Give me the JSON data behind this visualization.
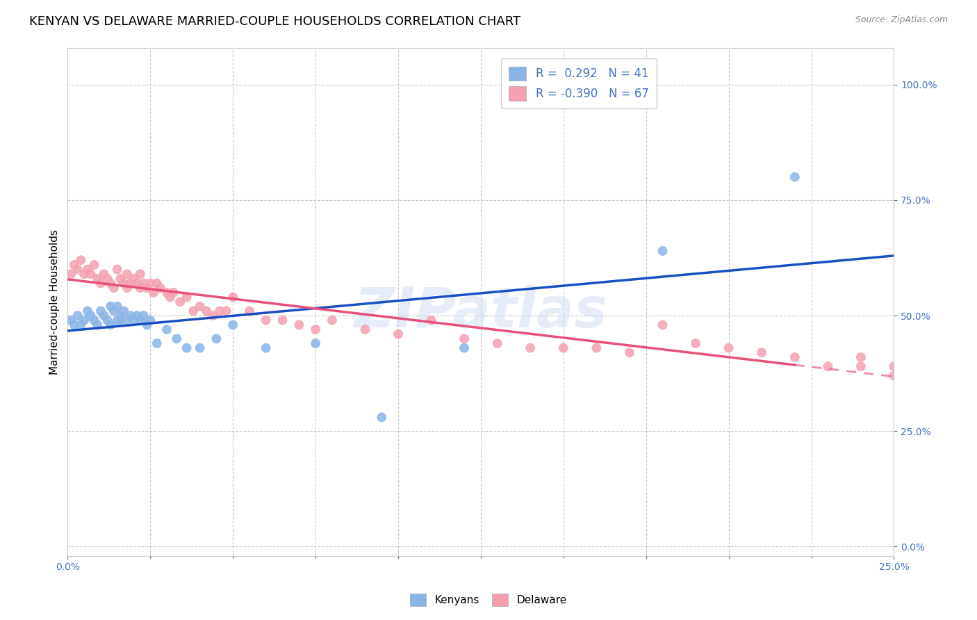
{
  "title": "KENYAN VS DELAWARE MARRIED-COUPLE HOUSEHOLDS CORRELATION CHART",
  "source": "Source: ZipAtlas.com",
  "ylabel": "Married-couple Households",
  "ytick_values": [
    0.0,
    0.25,
    0.5,
    0.75,
    1.0
  ],
  "xlim": [
    0.0,
    0.25
  ],
  "ylim": [
    -0.02,
    1.08
  ],
  "kenyan_color": "#8ab4e8",
  "delaware_color": "#f4a0b0",
  "regression_kenyan_color": "#1a4fc4",
  "regression_delaware_color": "#e8507a",
  "background_color": "#ffffff",
  "grid_color": "#c8c8c8",
  "watermark": "ZIPatlas",
  "tick_color": "#4472c4",
  "kenyan_x": [
    0.001,
    0.002,
    0.003,
    0.004,
    0.005,
    0.006,
    0.007,
    0.008,
    0.009,
    0.01,
    0.011,
    0.012,
    0.013,
    0.013,
    0.014,
    0.015,
    0.015,
    0.016,
    0.016,
    0.017,
    0.018,
    0.019,
    0.02,
    0.021,
    0.022,
    0.023,
    0.024,
    0.025,
    0.027,
    0.03,
    0.033,
    0.036,
    0.04,
    0.045,
    0.05,
    0.06,
    0.075,
    0.095,
    0.12,
    0.18,
    0.22
  ],
  "kenyan_y": [
    0.49,
    0.48,
    0.5,
    0.48,
    0.49,
    0.51,
    0.5,
    0.49,
    0.48,
    0.51,
    0.5,
    0.49,
    0.52,
    0.48,
    0.51,
    0.49,
    0.52,
    0.49,
    0.5,
    0.51,
    0.49,
    0.5,
    0.49,
    0.5,
    0.49,
    0.5,
    0.48,
    0.49,
    0.44,
    0.47,
    0.45,
    0.43,
    0.43,
    0.45,
    0.48,
    0.43,
    0.44,
    0.28,
    0.43,
    0.64,
    0.8
  ],
  "delaware_x": [
    0.001,
    0.002,
    0.003,
    0.004,
    0.005,
    0.006,
    0.007,
    0.008,
    0.009,
    0.01,
    0.011,
    0.012,
    0.013,
    0.014,
    0.015,
    0.016,
    0.017,
    0.018,
    0.018,
    0.019,
    0.02,
    0.021,
    0.022,
    0.022,
    0.023,
    0.024,
    0.025,
    0.026,
    0.027,
    0.028,
    0.03,
    0.031,
    0.032,
    0.034,
    0.036,
    0.038,
    0.04,
    0.042,
    0.044,
    0.046,
    0.048,
    0.05,
    0.055,
    0.06,
    0.065,
    0.07,
    0.075,
    0.08,
    0.09,
    0.1,
    0.11,
    0.12,
    0.13,
    0.14,
    0.15,
    0.16,
    0.17,
    0.18,
    0.19,
    0.2,
    0.21,
    0.22,
    0.23,
    0.24,
    0.25,
    0.24,
    0.25
  ],
  "delaware_y": [
    0.59,
    0.61,
    0.6,
    0.62,
    0.59,
    0.6,
    0.59,
    0.61,
    0.58,
    0.57,
    0.59,
    0.58,
    0.57,
    0.56,
    0.6,
    0.58,
    0.57,
    0.56,
    0.59,
    0.57,
    0.58,
    0.57,
    0.59,
    0.56,
    0.57,
    0.56,
    0.57,
    0.55,
    0.57,
    0.56,
    0.55,
    0.54,
    0.55,
    0.53,
    0.54,
    0.51,
    0.52,
    0.51,
    0.5,
    0.51,
    0.51,
    0.54,
    0.51,
    0.49,
    0.49,
    0.48,
    0.47,
    0.49,
    0.47,
    0.46,
    0.49,
    0.45,
    0.44,
    0.43,
    0.43,
    0.43,
    0.42,
    0.48,
    0.44,
    0.43,
    0.42,
    0.41,
    0.39,
    0.41,
    0.39,
    0.39,
    0.37
  ],
  "title_fontsize": 13,
  "axis_label_fontsize": 11,
  "tick_fontsize": 10,
  "legend_fontsize": 12
}
